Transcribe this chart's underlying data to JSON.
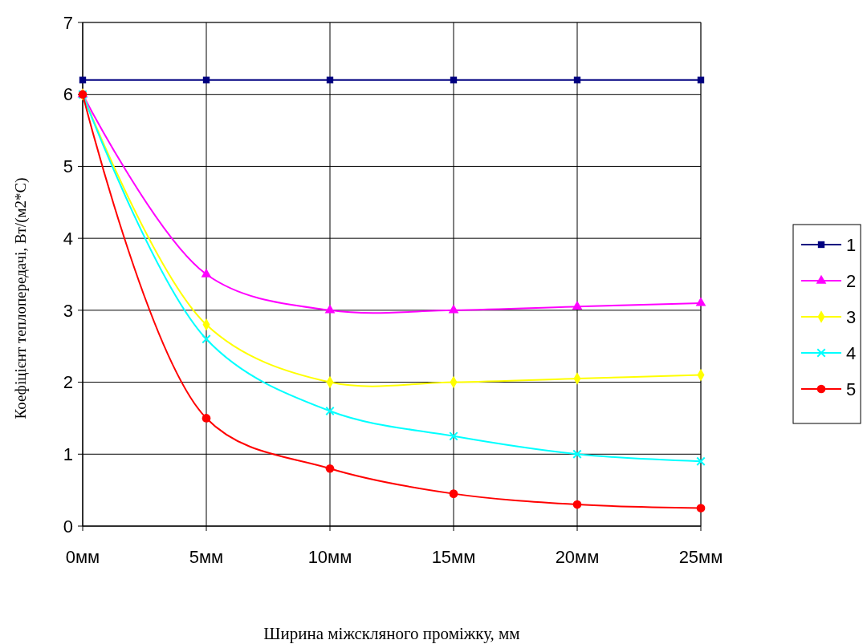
{
  "chart_data": {
    "type": "line",
    "xlabel": "Ширина міжскляного проміжку, мм",
    "ylabel": "Коефіцієнт теплопередачі, Вт/(м2*С)",
    "categories": [
      "0мм",
      "5мм",
      "10мм",
      "15мм",
      "20мм",
      "25мм"
    ],
    "ylim": [
      0,
      7
    ],
    "yticks": [
      0,
      1,
      2,
      3,
      4,
      5,
      6,
      7
    ],
    "grid": true,
    "legend": "right",
    "series": [
      {
        "name": "1",
        "color": "#000080",
        "marker": "square",
        "values": [
          6.2,
          6.2,
          6.2,
          6.2,
          6.2,
          6.2
        ]
      },
      {
        "name": "2",
        "color": "#ff00ff",
        "marker": "triangle",
        "values": [
          6,
          3.5,
          3.0,
          3.0,
          3.05,
          3.1
        ]
      },
      {
        "name": "3",
        "color": "#ffff00",
        "marker": "diamond",
        "values": [
          6,
          2.8,
          2.0,
          2.0,
          2.05,
          2.1
        ]
      },
      {
        "name": "4",
        "color": "#00ffff",
        "marker": "cross",
        "values": [
          6,
          2.6,
          1.6,
          1.25,
          1.0,
          0.9
        ]
      },
      {
        "name": "5",
        "color": "#ff0000",
        "marker": "circle",
        "values": [
          6,
          1.5,
          0.8,
          0.45,
          0.3,
          0.25
        ]
      }
    ]
  }
}
